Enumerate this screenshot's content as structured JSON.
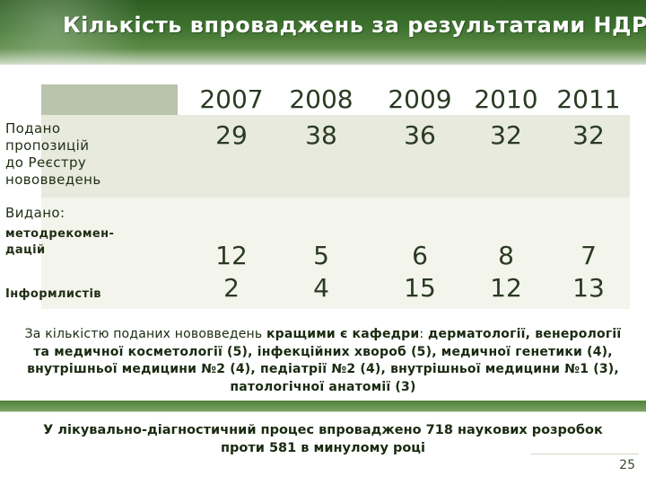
{
  "header": {
    "title": "Кількість впроваджень за результатами НДР"
  },
  "table": {
    "years": [
      "2007",
      "2008",
      "2009",
      "2010",
      "2011"
    ],
    "rows": [
      {
        "label_lines": [
          "Подано",
          "пропозицій",
          "до Реєстру",
          "нововведень"
        ],
        "values": [
          "29",
          "38",
          "36",
          "32",
          "32"
        ]
      }
    ],
    "issued": {
      "label": "Видано:",
      "sub1_lines": [
        "методрекомен-",
        "дацій"
      ],
      "sub2": "Інформлистів",
      "method_values": [
        "12",
        "5",
        "6",
        "8",
        "7"
      ],
      "info_values": [
        "2",
        "4",
        "15",
        "12",
        "13"
      ]
    }
  },
  "body": {
    "p1_plain": "За кількістю поданих нововведень ",
    "p1_bold1": "кращими є кафедри",
    "p1_colon": ": ",
    "p1_bold2": "дерматології, венерології та медичної косметології (5), інфекційних хвороб (5), медичної генетики (4), внутрішньої медицини №2 (4), педіатрії №2 (4), внутрішньої медицини №1 (3), патологічної анатомії (3)"
  },
  "footer": {
    "line1_a": "У лікувально-діагностичний процес впроваджено ",
    "line1_num": "718",
    "line1_b": " наукових розробок",
    "line2_a": "проти ",
    "line2_num": "581",
    "line2_b": " в минулому році"
  },
  "page": {
    "number": "25"
  },
  "colors": {
    "header_green": "#3f7430",
    "header_strip": "#b8c4ab",
    "row1_bg": "#e7eadc",
    "row2_bg": "#f3f4ec"
  }
}
